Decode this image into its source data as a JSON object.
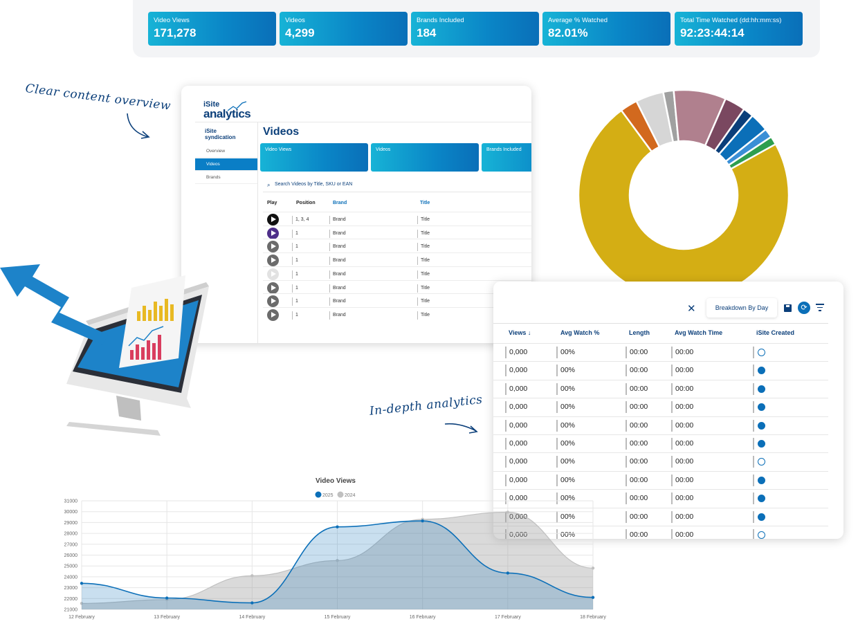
{
  "kpis": [
    {
      "label": "Video Views",
      "value": "171,278"
    },
    {
      "label": "Videos",
      "value": "4,299"
    },
    {
      "label": "Brands Included",
      "value": "184"
    },
    {
      "label": "Average % Watched",
      "value": "82.01%"
    },
    {
      "label": "Total Time Watched (dd:hh:mm:ss)",
      "value": "92:23:44:14"
    }
  ],
  "notes": {
    "overview": "Clear content overview",
    "analytics": "In-depth analytics"
  },
  "videos_window": {
    "logo_top": "iSite",
    "logo_bottom": "analytics",
    "syndication_logo": [
      "iSite",
      "syndication"
    ],
    "sidebar": [
      "Overview",
      "Videos",
      "Brands"
    ],
    "active_item": "Videos",
    "title": "Videos",
    "cards": [
      "Video Views",
      "Videos",
      "Brands Included"
    ],
    "search_placeholder": "Search Videos by Title, SKU or EAN",
    "columns": [
      "Play",
      "Position",
      "Brand",
      "Title"
    ],
    "rows": [
      {
        "position": "1, 3, 4",
        "brand": "Brand",
        "title": "Title",
        "thumb": "black"
      },
      {
        "position": "1",
        "brand": "Brand",
        "title": "Title",
        "thumb": "purple"
      },
      {
        "position": "1",
        "brand": "Brand",
        "title": "Title",
        "thumb": "grey"
      },
      {
        "position": "1",
        "brand": "Brand",
        "title": "Title",
        "thumb": "grey"
      },
      {
        "position": "1",
        "brand": "Brand",
        "title": "Title",
        "thumb": "light"
      },
      {
        "position": "1",
        "brand": "Brand",
        "title": "Title",
        "thumb": "grey"
      },
      {
        "position": "1",
        "brand": "Brand",
        "title": "Title",
        "thumb": "grey"
      },
      {
        "position": "1",
        "brand": "Brand",
        "title": "Title",
        "thumb": "grey"
      }
    ]
  },
  "donut": {
    "colors": [
      "#d4ae14",
      "#d2691e",
      "#d6d6d6",
      "#a0a0a0",
      "#b0808e",
      "#7a4860",
      "#0b3f7a",
      "#0b6fb8",
      "#3a8fd6",
      "#2e9e4e"
    ],
    "values": [
      68,
      2.5,
      4,
      1.5,
      7.5,
      3,
      1.5,
      2.7,
      1.3,
      1.2
    ]
  },
  "analytics_table": {
    "breakdown_label": "Breakdown By Day",
    "close_glyph": "✕",
    "refresh_glyph": "⟳",
    "columns": [
      "Views ↓",
      "Avg Watch %",
      "Length",
      "Avg Watch Time",
      "iSite Created"
    ],
    "rows": [
      {
        "views": "0,000",
        "avg": "00%",
        "length": "00:00",
        "watch": "00:00",
        "created": false
      },
      {
        "views": "0,000",
        "avg": "00%",
        "length": "00:00",
        "watch": "00:00",
        "created": true
      },
      {
        "views": "0,000",
        "avg": "00%",
        "length": "00:00",
        "watch": "00:00",
        "created": true
      },
      {
        "views": "0,000",
        "avg": "00%",
        "length": "00:00",
        "watch": "00:00",
        "created": true
      },
      {
        "views": "0,000",
        "avg": "00%",
        "length": "00:00",
        "watch": "00:00",
        "created": true
      },
      {
        "views": "0,000",
        "avg": "00%",
        "length": "00:00",
        "watch": "00:00",
        "created": true
      },
      {
        "views": "0,000",
        "avg": "00%",
        "length": "00:00",
        "watch": "00:00",
        "created": false
      },
      {
        "views": "0,000",
        "avg": "00%",
        "length": "00:00",
        "watch": "00:00",
        "created": true
      },
      {
        "views": "0,000",
        "avg": "00%",
        "length": "00:00",
        "watch": "00:00",
        "created": true
      },
      {
        "views": "0,000",
        "avg": "00%",
        "length": "00:00",
        "watch": "00:00",
        "created": true
      },
      {
        "views": "0,000",
        "avg": "00%",
        "length": "00:00",
        "watch": "00:00",
        "created": false
      }
    ]
  },
  "chart_data": {
    "type": "area",
    "title": "Video Views",
    "categories": [
      "12 February",
      "13 February",
      "14 February",
      "15 February",
      "16 February",
      "17 February",
      "18 February"
    ],
    "series": [
      {
        "name": "2025",
        "color": "#0b6fb8",
        "values": [
          23400,
          22050,
          21600,
          28600,
          29150,
          24350,
          22100
        ]
      },
      {
        "name": "2024",
        "color": "#c0c0c0",
        "values": [
          21550,
          21900,
          24100,
          25500,
          29300,
          29950,
          24800
        ]
      }
    ],
    "yticks": [
      21000,
      22000,
      23000,
      24000,
      25000,
      26000,
      27000,
      28000,
      29000,
      30000,
      31000
    ],
    "ylim": [
      21000,
      31000
    ],
    "legend": "top"
  }
}
